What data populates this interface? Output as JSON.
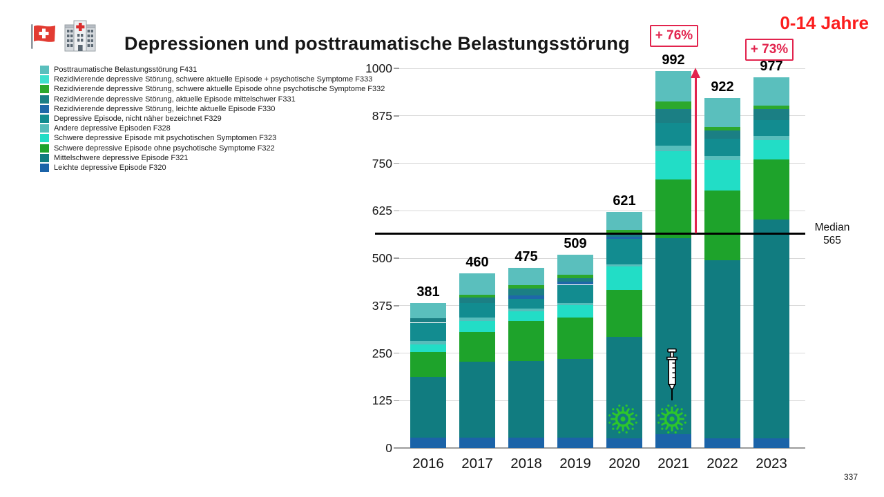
{
  "header": {
    "title": "Depressionen und posttraumatische Belastungsstörung",
    "age_group": "0-14 Jahre"
  },
  "icons": {
    "flag": "swiss-flag-icon",
    "hospital": "hospital-icon",
    "virus": "virus-icon",
    "syringe": "syringe-icon"
  },
  "legend": [
    {
      "label": "Posttraumatische Belastungsstörung F431",
      "color": "#5abfbd"
    },
    {
      "label": "Rezidivierende depressive Störung, schwere aktuelle Episode + psychotische Symptome F333",
      "color": "#3fe0ce"
    },
    {
      "label": "Rezidivierende depressive Störung, schwere aktuelle Episode ohne psychotische Symptome F332",
      "color": "#2ca82c"
    },
    {
      "label": "Rezidivierende depressive Störung, aktuelle Episode mittelschwer F331",
      "color": "#1b7f84"
    },
    {
      "label": "Rezidivierende depressive Störung, leichte aktuelle Episode F330",
      "color": "#1e68a8"
    },
    {
      "label": "Depressive Episode, nicht näher bezeichnet F329",
      "color": "#128c90"
    },
    {
      "label": "Andere depressive Episoden F328",
      "color": "#57bdbb"
    },
    {
      "label": "Schwere depressive Episode mit psychotischen Symptomen F323",
      "color": "#22ddc6"
    },
    {
      "label": "Schwere depressive Episode ohne psychotische Symptome F322",
      "color": "#1ea32b"
    },
    {
      "label": "Mittelschwere depressive Episode F321",
      "color": "#117c80"
    },
    {
      "label": "Leichte depressive Episode F320",
      "color": "#1b63a8"
    }
  ],
  "chart_data": {
    "type": "bar",
    "stacked": true,
    "title": "Depressionen und posttraumatische Belastungsstörung",
    "categories": [
      "2016",
      "2017",
      "2018",
      "2019",
      "2020",
      "2021",
      "2022",
      "2023"
    ],
    "totals": [
      381,
      460,
      475,
      509,
      621,
      992,
      922,
      977
    ],
    "series": [
      {
        "name": "Leichte depressive Episode F320",
        "color": "#1b63a8",
        "values": [
          27,
          27,
          27,
          27,
          25,
          37,
          25,
          25
        ]
      },
      {
        "name": "Mittelschwere depressive Episode F321",
        "color": "#117c80",
        "values": [
          161,
          200,
          203,
          207,
          268,
          515,
          469,
          577
        ]
      },
      {
        "name": "Schwere depressive Episode ohne psychotische Symptome F322",
        "color": "#1ea32b",
        "values": [
          64,
          79,
          105,
          109,
          124,
          155,
          185,
          158
        ]
      },
      {
        "name": "Schwere depressive Episode mit psychotischen Symptomen F323",
        "color": "#22ddc6",
        "values": [
          21,
          28,
          25,
          33,
          61,
          75,
          79,
          51
        ]
      },
      {
        "name": "Andere depressive Episoden F328",
        "color": "#57bdbb",
        "values": [
          9,
          9,
          8,
          6,
          6,
          15,
          12,
          10
        ]
      },
      {
        "name": "Depressive Episode, nicht näher bezeichnet F329",
        "color": "#128c90",
        "values": [
          48,
          38,
          24,
          48,
          67,
          60,
          45,
          42
        ]
      },
      {
        "name": "Rezidivierende depressive Störung, leichte aktuelle Episode F330",
        "color": "#1e68a8",
        "values": [
          0,
          0,
          10,
          9,
          5,
          0,
          0,
          0
        ]
      },
      {
        "name": "Rezidivierende depressive Störung, aktuelle Episode mittelschwer F331",
        "color": "#1b7f84",
        "values": [
          12,
          15,
          18,
          9,
          8,
          35,
          21,
          29
        ]
      },
      {
        "name": "Rezidivierende depressive Störung, schwere aktuelle Episode ohne psychotische Symptome F332",
        "color": "#2ca82c",
        "values": [
          0,
          8,
          9,
          9,
          10,
          20,
          9,
          10
        ]
      },
      {
        "name": "Rezidivierende depressive Störung, schwere aktuelle Episode + psychotische Symptome F333",
        "color": "#3fe0ce",
        "values": [
          0,
          0,
          0,
          0,
          0,
          0,
          0,
          0
        ]
      },
      {
        "name": "Posttraumatische Belastungsstörung F431",
        "color": "#5abfbd",
        "values": [
          39,
          56,
          46,
          52,
          47,
          80,
          77,
          75
        ]
      }
    ],
    "ylim": [
      0,
      1000
    ],
    "yticks": [
      0,
      125,
      250,
      375,
      500,
      625,
      750,
      875,
      1000
    ],
    "grid": true,
    "legend_position": "left",
    "median": {
      "label": "Median",
      "value": "565",
      "numeric": 565
    },
    "annotations": [
      {
        "text": "+ 76%",
        "category": "2021"
      },
      {
        "text": "+ 73%",
        "category": "2023"
      }
    ],
    "pictograms": {
      "virus_categories": [
        "2020",
        "2021"
      ],
      "syringe_categories": [
        "2021"
      ]
    }
  },
  "page_number": "337"
}
